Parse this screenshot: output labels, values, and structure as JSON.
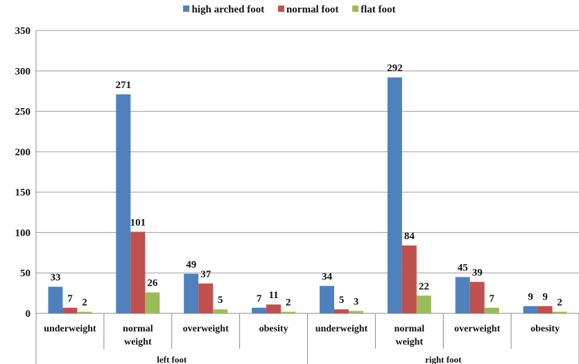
{
  "chart_data": {
    "type": "bar",
    "groups": [
      "left foot",
      "right foot"
    ],
    "categories": [
      "underweight",
      "normal weight",
      "overweight",
      "obesity",
      "underweight",
      "normal weight",
      "overweight",
      "obesity"
    ],
    "category_lines": [
      [
        "underweight"
      ],
      [
        "normal",
        "weight"
      ],
      [
        "overweight"
      ],
      [
        "obesity"
      ],
      [
        "underweight"
      ],
      [
        "normal",
        "weight"
      ],
      [
        "overweight"
      ],
      [
        "obesity"
      ]
    ],
    "series": [
      {
        "name": "high arched foot",
        "color": "#4f81bd",
        "values": [
          33,
          271,
          49,
          7,
          34,
          292,
          45,
          9
        ]
      },
      {
        "name": "normal foot",
        "color": "#c0504d",
        "values": [
          7,
          101,
          37,
          11,
          5,
          84,
          39,
          9
        ]
      },
      {
        "name": "flat foot",
        "color": "#9bbb59",
        "values": [
          2,
          26,
          5,
          2,
          3,
          22,
          7,
          2
        ]
      }
    ],
    "y_ticks": [
      "0",
      "50",
      "100",
      "150",
      "200",
      "250",
      "300",
      "350"
    ],
    "ylim": [
      0,
      350
    ],
    "grid": true,
    "legend": "top",
    "title": "",
    "xlabel": "",
    "ylabel": ""
  }
}
